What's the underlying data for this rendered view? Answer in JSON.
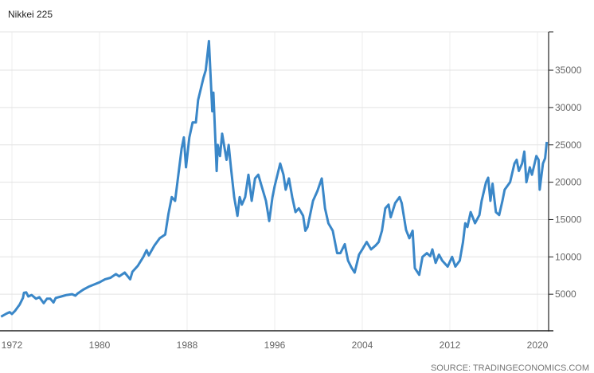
{
  "chart_data": {
    "type": "line",
    "title": "Nikkei 225",
    "source": "SOURCE: TRADINGECONOMICS.COM",
    "xlabel": "",
    "ylabel": "",
    "xlim": [
      1970.9,
      2021.3
    ],
    "ylim": [
      0,
      40000
    ],
    "x_ticks": [
      "1972",
      "1980",
      "1988",
      "1996",
      "2004",
      "2012",
      "2020"
    ],
    "y_ticks": [
      "5000",
      "10000",
      "15000",
      "20000",
      "25000",
      "30000",
      "35000"
    ],
    "y_axis_side": "right",
    "grid": true,
    "line_color": "#3a87c8",
    "series": [
      {
        "x": [
          1971.0,
          1971.5,
          1971.8,
          1972.0,
          1972.3,
          1972.7,
          1973.0,
          1973.1,
          1973.3,
          1973.5,
          1973.8,
          1974.2,
          1974.5,
          1974.9,
          1975.2,
          1975.5,
          1975.8,
          1976.0,
          1976.5,
          1977.0,
          1977.5,
          1977.8,
          1978.0,
          1978.5,
          1979.0,
          1979.5,
          1980.0,
          1980.5,
          1981.0,
          1981.5,
          1981.8,
          1982.3,
          1982.8,
          1983.0,
          1983.5,
          1984.0,
          1984.3,
          1984.5,
          1985.0,
          1985.5,
          1986.0,
          1986.3,
          1986.6,
          1986.9,
          1987.2,
          1987.5,
          1987.7,
          1987.9,
          1988.2,
          1988.5,
          1988.8,
          1989.0,
          1989.5,
          1989.7,
          1989.99,
          1990.3,
          1990.4,
          1990.7,
          1990.8,
          1991.0,
          1991.2,
          1991.6,
          1991.8,
          1992.0,
          1992.3,
          1992.6,
          1992.8,
          1993.0,
          1993.3,
          1993.6,
          1993.9,
          1994.2,
          1994.5,
          1994.8,
          1995.2,
          1995.5,
          1995.8,
          1996.0,
          1996.5,
          1996.8,
          1997.0,
          1997.3,
          1997.6,
          1997.9,
          1998.2,
          1998.6,
          1998.8,
          1999.0,
          1999.5,
          1999.9,
          2000.3,
          2000.6,
          2000.9,
          2001.3,
          2001.7,
          2002.0,
          2002.4,
          2002.7,
          2003.0,
          2003.3,
          2003.7,
          2004.0,
          2004.4,
          2004.8,
          2005.2,
          2005.5,
          2005.8,
          2006.1,
          2006.4,
          2006.6,
          2007.0,
          2007.4,
          2007.6,
          2008.0,
          2008.3,
          2008.6,
          2008.8,
          2009.2,
          2009.5,
          2009.9,
          2010.2,
          2010.4,
          2010.7,
          2011.0,
          2011.3,
          2011.8,
          2012.2,
          2012.5,
          2012.9,
          2013.2,
          2013.4,
          2013.6,
          2013.9,
          2014.3,
          2014.7,
          2014.9,
          2015.3,
          2015.5,
          2015.7,
          2015.9,
          2016.2,
          2016.5,
          2016.8,
          2017.0,
          2017.5,
          2017.9,
          2018.1,
          2018.3,
          2018.6,
          2018.8,
          2018.99,
          2019.3,
          2019.5,
          2019.9,
          2020.1,
          2020.2,
          2020.5,
          2020.7,
          2020.85
        ],
        "values": [
          2000,
          2400,
          2600,
          2350,
          2800,
          3600,
          4500,
          5200,
          5250,
          4700,
          4900,
          4400,
          4600,
          3800,
          4400,
          4400,
          3900,
          4500,
          4700,
          4900,
          5000,
          4800,
          5100,
          5600,
          6000,
          6300,
          6600,
          7000,
          7200,
          7700,
          7400,
          7900,
          7000,
          8000,
          8800,
          10000,
          10900,
          10200,
          11500,
          12500,
          13000,
          15800,
          18000,
          17500,
          21000,
          24500,
          26000,
          22000,
          26000,
          28000,
          28000,
          31000,
          34000,
          35000,
          38900,
          29500,
          32000,
          21500,
          25000,
          23500,
          26500,
          23000,
          25000,
          22000,
          18000,
          15500,
          18000,
          17000,
          18000,
          21000,
          17500,
          20500,
          21000,
          19500,
          17500,
          14800,
          18000,
          19500,
          22500,
          21000,
          19000,
          20500,
          18000,
          16000,
          16500,
          15500,
          13500,
          14000,
          17500,
          18800,
          20500,
          16500,
          14500,
          13500,
          10500,
          10500,
          11700,
          9500,
          8600,
          7900,
          10300,
          11000,
          12000,
          11000,
          11500,
          12000,
          13500,
          16500,
          17000,
          15300,
          17200,
          18000,
          17200,
          13600,
          12500,
          13500,
          8500,
          7600,
          10000,
          10500,
          10100,
          11000,
          9200,
          10300,
          9500,
          8700,
          10000,
          8700,
          9500,
          12000,
          14500,
          14000,
          16000,
          14500,
          15600,
          17500,
          20000,
          20600,
          17500,
          19800,
          16000,
          15600,
          17500,
          19000,
          20000,
          22500,
          23000,
          21500,
          22500,
          24100,
          20000,
          22000,
          21000,
          23500,
          23000,
          19000,
          22500,
          23200,
          25400
        ]
      }
    ]
  }
}
